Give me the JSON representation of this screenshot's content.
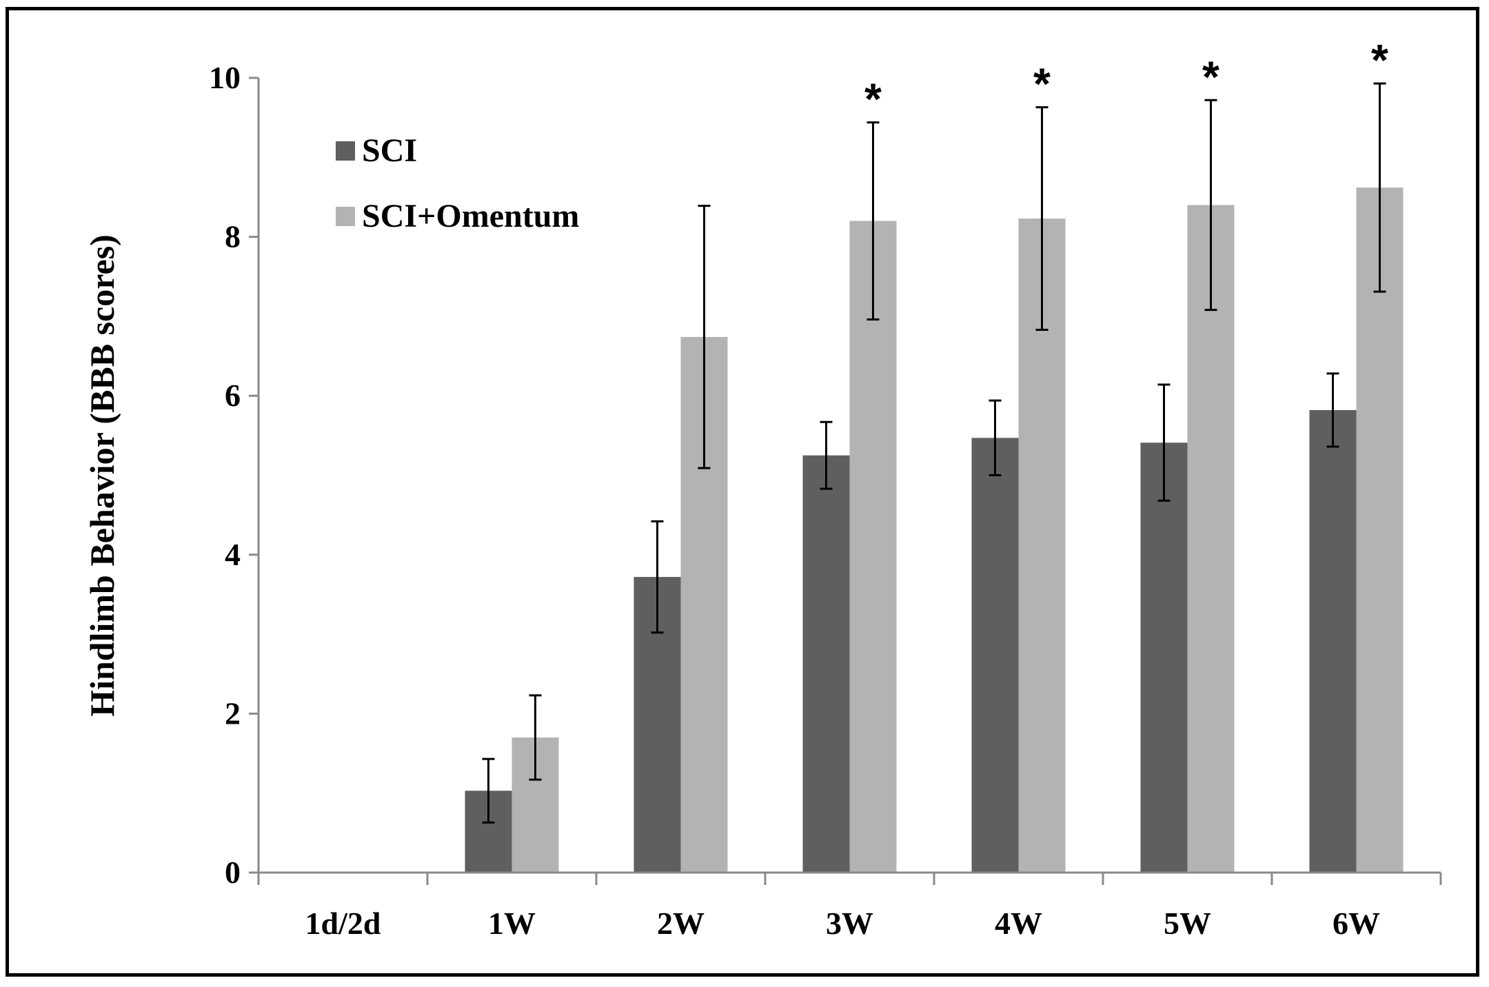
{
  "chart_data": {
    "type": "bar",
    "title": "",
    "xlabel": "",
    "ylabel": "Hindlimb Behavior (BBB scores)",
    "ylim": [
      0,
      10
    ],
    "yticks": [
      0,
      2,
      4,
      6,
      8,
      10
    ],
    "grid": false,
    "legend_position": "top-left",
    "categories": [
      "1d/2d",
      "1W",
      "2W",
      "3W",
      "4W",
      "5W",
      "6W"
    ],
    "series": [
      {
        "name": "SCI",
        "color": "#5f5f5f",
        "values": [
          0,
          1.03,
          3.72,
          5.25,
          5.47,
          5.41,
          5.82
        ],
        "errors": [
          0,
          0.4,
          0.7,
          0.42,
          0.47,
          0.73,
          0.46
        ]
      },
      {
        "name": "SCI+Omentum",
        "color": "#b3b3b3",
        "values": [
          0,
          1.7,
          6.74,
          8.2,
          8.23,
          8.4,
          8.62
        ],
        "errors": [
          0,
          0.53,
          1.65,
          1.24,
          1.4,
          1.32,
          1.31
        ]
      }
    ],
    "annotations": [
      {
        "category": "3W",
        "text": "*"
      },
      {
        "category": "4W",
        "text": "*"
      },
      {
        "category": "5W",
        "text": "*"
      },
      {
        "category": "6W",
        "text": "*"
      }
    ]
  }
}
